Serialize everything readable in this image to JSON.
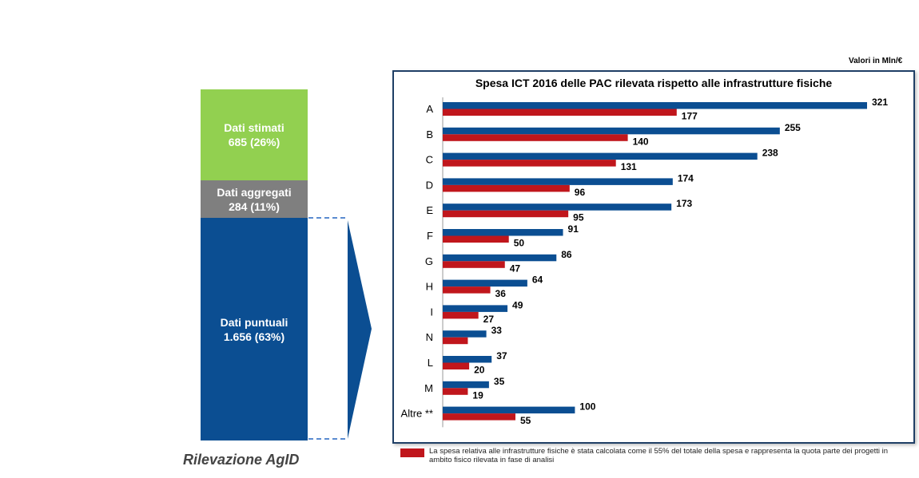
{
  "units_label": "Valori in Mln/€",
  "stack": {
    "caption": "Rilevazione AgID",
    "segments": [
      {
        "label": "Dati stimati\n685 (26%)",
        "value": 685,
        "color": "#92d050"
      },
      {
        "label": "Dati aggregati\n284 (11%)",
        "value": 284,
        "color": "#7f7f7f"
      },
      {
        "label": "Dati puntuali\n1.656 (63%)",
        "value": 1656,
        "color": "#0b4e92"
      }
    ]
  },
  "chart_data": {
    "type": "bar",
    "orientation": "horizontal",
    "title": "Spesa ICT 2016 delle PAC rilevata rispetto alle infrastrutture fisiche",
    "categories": [
      "A",
      "B",
      "C",
      "D",
      "E",
      "F",
      "G",
      "H",
      "I",
      "N",
      "L",
      "M",
      "Altre **"
    ],
    "series": [
      {
        "values": [
          321,
          255,
          238,
          174,
          173,
          91,
          86,
          64,
          49,
          33,
          37,
          35,
          100
        ],
        "color": "#0b4e92",
        "labels": [
          "321",
          "255",
          "238",
          "174",
          "173",
          "91",
          "86",
          "64",
          "49",
          "33",
          "37",
          "35",
          "100"
        ]
      },
      {
        "values": [
          177,
          140,
          131,
          96,
          95,
          50,
          47,
          36,
          27,
          19,
          20,
          19,
          55
        ],
        "color": "#c0161c",
        "labels": [
          "177",
          "140",
          "131",
          "96",
          "95",
          "50",
          "47",
          "36",
          "27",
          "",
          "20",
          "19",
          "55"
        ]
      }
    ],
    "xlim": [
      0,
      321
    ],
    "grid": false
  },
  "footnote": {
    "text": "La spesa relativa alle infrastrutture fisiche è stata calcolata come il 55% del totale della spesa e rappresenta la quota parte dei progetti in ambito fisico rilevata in fase di analisi",
    "color": "#c0161c"
  }
}
